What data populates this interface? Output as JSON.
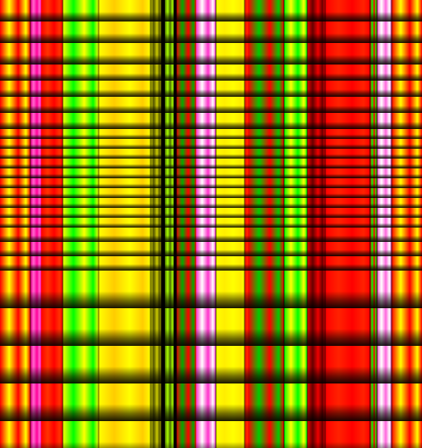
{
  "palette": {
    "red": "#ff0000",
    "yellow": "#ffff00",
    "green": "#00ff00",
    "magenta": "#ff00aa",
    "white": "#ffffff",
    "black": "#000000",
    "olive": "#556b00"
  },
  "column_bands": [
    {
      "name": "band-red-1",
      "color": "#ff0000",
      "accent": "#ffff00"
    },
    {
      "name": "band-magenta-1",
      "color": "#ff0099",
      "accent": "#ff66cc"
    },
    {
      "name": "band-red-2",
      "color": "#ff0000",
      "accent": "#ff3300"
    },
    {
      "name": "band-yellow-green-1",
      "color": "#ffff00",
      "accent": "#00ff00"
    },
    {
      "name": "band-yellow-1",
      "color": "#ffff00",
      "accent": "#ffcc00"
    },
    {
      "name": "band-dark-yellow",
      "color": "#cccc00",
      "accent": "#555500"
    },
    {
      "name": "band-olive-stripe",
      "color": "#4a6b00",
      "accent": "#aaff00"
    },
    {
      "name": "band-red-3",
      "color": "#ff0000",
      "accent": "#00aa00"
    },
    {
      "name": "band-magenta-white",
      "color": "#ff33cc",
      "accent": "#ffffff"
    },
    {
      "name": "band-yellow-2",
      "color": "#ffff00",
      "accent": "#ffee00"
    },
    {
      "name": "band-red-4",
      "color": "#ff0000",
      "accent": "#ff4400"
    },
    {
      "name": "band-red-green",
      "color": "#ff0000",
      "accent": "#00cc00"
    },
    {
      "name": "band-green",
      "color": "#00ff00",
      "accent": "#ffff00"
    },
    {
      "name": "band-red-5",
      "color": "#ee0000",
      "accent": "#660000"
    },
    {
      "name": "band-red-6",
      "color": "#ff0000",
      "accent": "#ff2200"
    },
    {
      "name": "band-red-green-2",
      "color": "#ff0000",
      "accent": "#00ff00"
    },
    {
      "name": "band-magenta-2",
      "color": "#ff66dd",
      "accent": "#ffffff"
    },
    {
      "name": "band-red-7",
      "color": "#ff0000",
      "accent": "#ffff00"
    }
  ]
}
